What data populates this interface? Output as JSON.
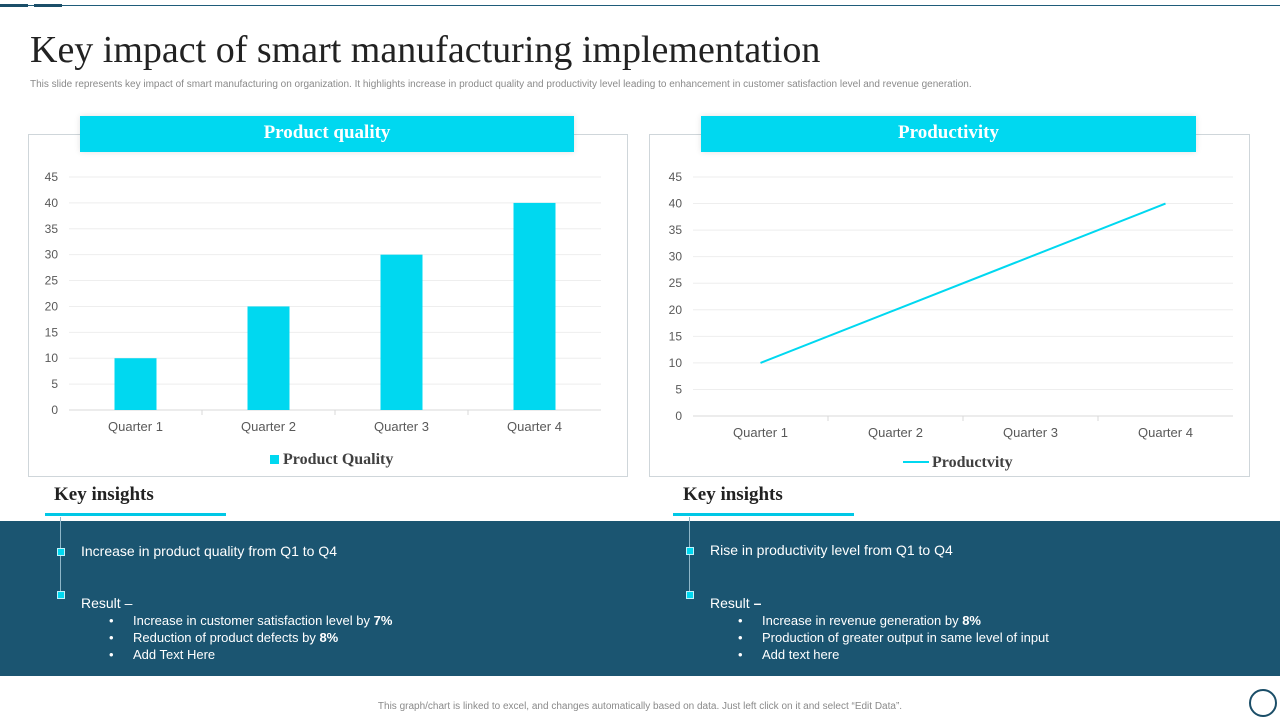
{
  "page": {
    "title": "Key impact of smart manufacturing implementation",
    "subtitle": "This slide represents key impact of smart manufacturing on organization. It highlights increase in product quality and productivity level leading to enhancement in customer satisfaction level and revenue generation.",
    "footer": "This graph/chart is linked to excel, and changes automatically based on data. Just left click on it and select “Edit Data”."
  },
  "colors": {
    "accent": "#00d8f0",
    "band": "#1b5571",
    "dark": "#1b4e68"
  },
  "chart_data": [
    {
      "type": "bar",
      "title": "Product quality",
      "categories": [
        "Quarter 1",
        "Quarter 2",
        "Quarter 3",
        "Quarter 4"
      ],
      "series": [
        {
          "name": "Product Quality",
          "values": [
            10,
            20,
            30,
            40
          ]
        }
      ],
      "ylim": [
        0,
        45
      ],
      "yticks": [
        0,
        5,
        10,
        15,
        20,
        25,
        30,
        35,
        40,
        45
      ],
      "grid": true,
      "legend": "bottom",
      "xlabel": "",
      "ylabel": ""
    },
    {
      "type": "line",
      "title": "Productivity",
      "categories": [
        "Quarter 1",
        "Quarter 2",
        "Quarter 3",
        "Quarter 4"
      ],
      "series": [
        {
          "name": "Productvity",
          "values": [
            10,
            20,
            30,
            40
          ]
        }
      ],
      "ylim": [
        0,
        45
      ],
      "yticks": [
        0,
        5,
        10,
        15,
        20,
        25,
        30,
        35,
        40,
        45
      ],
      "grid": true,
      "legend": "bottom",
      "xlabel": "",
      "ylabel": ""
    }
  ],
  "insights": {
    "left": {
      "heading": "Key insights",
      "point": "Increase in product quality from Q1 to Q4",
      "result_label": "Result –",
      "bullets": [
        {
          "text": "Increase in customer satisfaction level by ",
          "bold": "7%"
        },
        {
          "text": "Reduction of product defects by ",
          "bold": "8%"
        },
        {
          "text": "Add Text Here",
          "bold": ""
        }
      ]
    },
    "right": {
      "heading": "Key insights",
      "point": "Rise in productivity level from Q1 to Q4",
      "result_label": "Result",
      "result_dash": "–",
      "bullets": [
        {
          "text": "Increase in revenue generation by ",
          "bold": "8%"
        },
        {
          "text": "Production of greater output in same level of input",
          "bold": ""
        },
        {
          "text": "Add text here",
          "bold": ""
        }
      ]
    }
  }
}
